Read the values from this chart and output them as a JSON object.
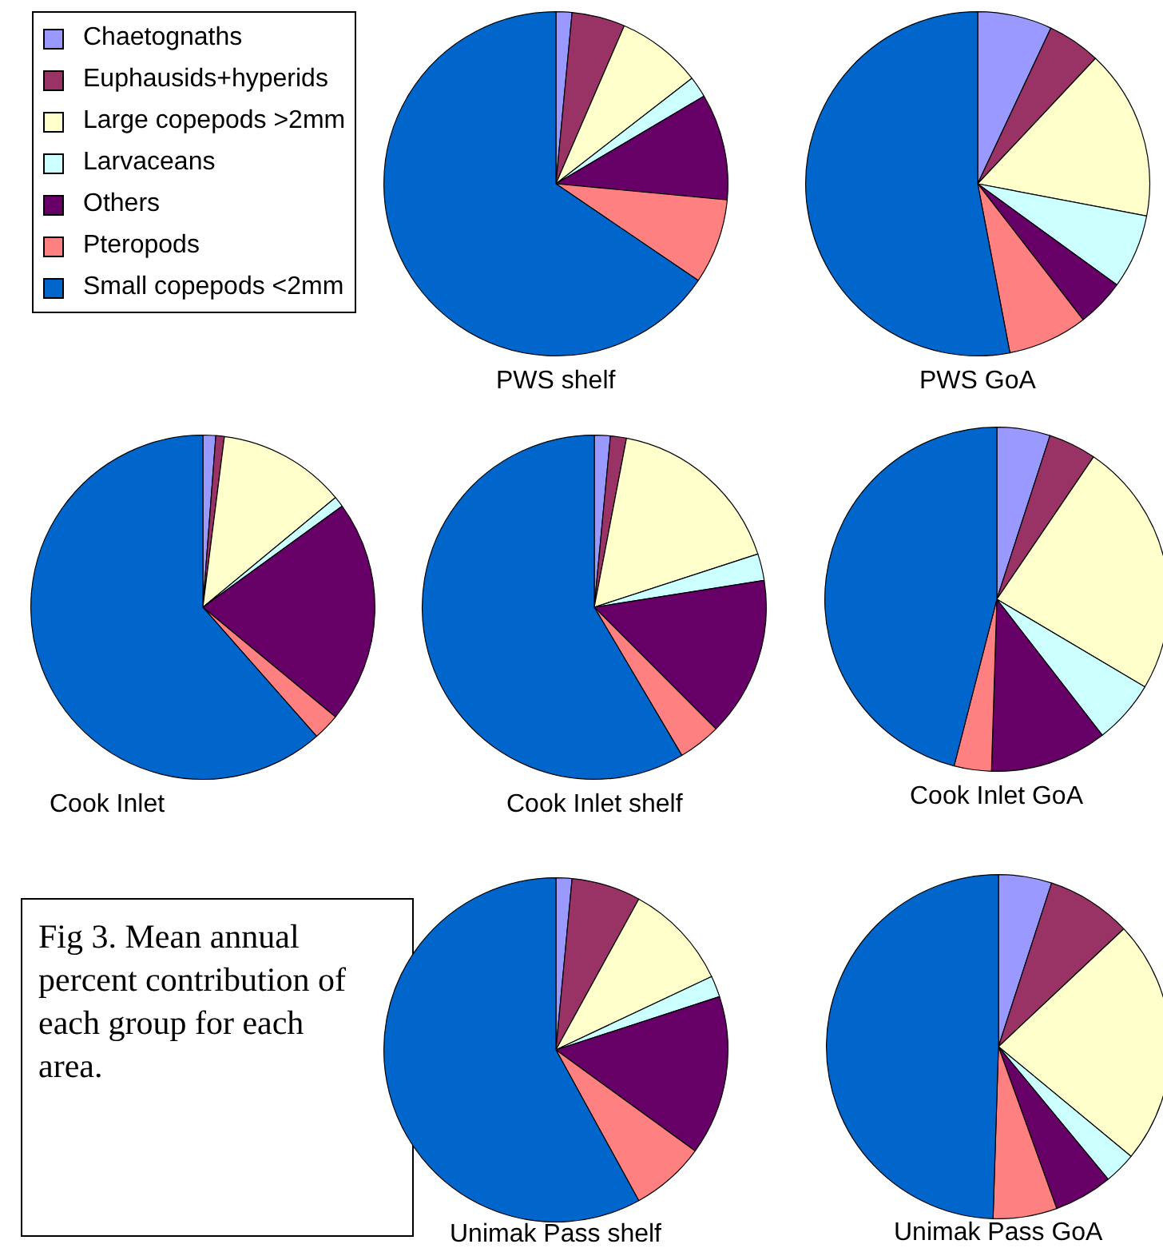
{
  "chart_data": [
    {
      "type": "pie",
      "title": "PWS shelf",
      "legend": "top left",
      "annotations": [
        "Fig 3. Mean annual percent contribution of each group for each area."
      ],
      "categories": [
        "Chaetognaths",
        "Euphausids+hyperids",
        "Large copepods >2mm",
        "Larvaceans",
        "Others",
        "Pteropods",
        "Small copepods <2mm"
      ],
      "values": [
        1.5,
        5,
        8,
        2,
        10,
        8,
        65.5
      ],
      "colors": [
        "#9999ff",
        "#993366",
        "#ffffcc",
        "#ccffff",
        "#660066",
        "#ff8080",
        "#0066cc"
      ]
    },
    {
      "type": "pie",
      "title": "PWS GoA",
      "categories": [
        null,
        null,
        null,
        null,
        null,
        null,
        null
      ],
      "values": [
        7,
        5,
        16,
        7,
        4.5,
        7.5,
        53
      ],
      "colors": [
        "#9999ff",
        "#993366",
        "#ffffcc",
        "#ccffff",
        "#660066",
        "#ff8080",
        "#0066cc"
      ]
    },
    {
      "type": "pie",
      "title": "Cook Inlet",
      "categories": [
        null,
        null,
        null,
        null,
        null,
        null,
        null
      ],
      "values": [
        1.2,
        0.8,
        12,
        1,
        21,
        2.5,
        61.5
      ],
      "colors": [
        "#9999ff",
        "#993366",
        "#ffffcc",
        "#ccffff",
        "#660066",
        "#ff8080",
        "#0066cc"
      ]
    },
    {
      "type": "pie",
      "title": "Cook Inlet shelf",
      "categories": [
        null,
        null,
        null,
        null,
        null,
        null,
        null
      ],
      "values": [
        1.5,
        1.5,
        17,
        2.5,
        15,
        4,
        58.5
      ],
      "colors": [
        "#9999ff",
        "#993366",
        "#ffffcc",
        "#ccffff",
        "#660066",
        "#ff8080",
        "#0066cc"
      ]
    },
    {
      "type": "pie",
      "title": "Cook Inlet GoA",
      "categories": [
        null,
        null,
        null,
        null,
        null,
        null,
        null
      ],
      "values": [
        5,
        4.5,
        24,
        6,
        11,
        3.5,
        46
      ],
      "colors": [
        "#9999ff",
        "#993366",
        "#ffffcc",
        "#ccffff",
        "#660066",
        "#ff8080",
        "#0066cc"
      ]
    },
    {
      "type": "pie",
      "title": "Unimak Pass shelf",
      "categories": [
        null,
        null,
        null,
        null,
        null,
        null,
        null
      ],
      "values": [
        1.5,
        6.5,
        10,
        2,
        15,
        7,
        58
      ],
      "colors": [
        "#9999ff",
        "#993366",
        "#ffffcc",
        "#ccffff",
        "#660066",
        "#ff8080",
        "#0066cc"
      ]
    },
    {
      "type": "pie",
      "title": "Unimak Pass GoA",
      "categories": [
        null,
        null,
        null,
        null,
        null,
        null,
        null
      ],
      "values": [
        5,
        8,
        23,
        3,
        5.5,
        6,
        49.5
      ],
      "colors": [
        "#9999ff",
        "#993366",
        "#ffffcc",
        "#ccffff",
        "#660066",
        "#ff8080",
        "#0066cc"
      ]
    }
  ]
}
